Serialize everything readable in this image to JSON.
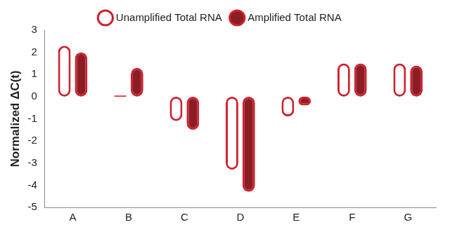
{
  "chart_data": {
    "type": "bar",
    "categories": [
      "A",
      "B",
      "C",
      "D",
      "E",
      "F",
      "G"
    ],
    "series": [
      {
        "name": "Unamplified Total RNA",
        "color": "#ffffff",
        "values": [
          2.3,
          0.05,
          -1.1,
          -3.3,
          -0.9,
          1.5,
          1.5
        ]
      },
      {
        "name": "Amplified Total RNA",
        "color": "#8b1e24",
        "values": [
          2.0,
          1.3,
          -1.5,
          -4.3,
          -0.4,
          1.5,
          1.4
        ]
      }
    ],
    "y_label": "Normalized ΔC(t)",
    "ylim": [
      -5,
      3
    ],
    "yticks": [
      -5,
      -4,
      -3,
      -2,
      -1,
      0,
      1,
      2,
      3
    ],
    "grid": false,
    "legend": "top"
  }
}
